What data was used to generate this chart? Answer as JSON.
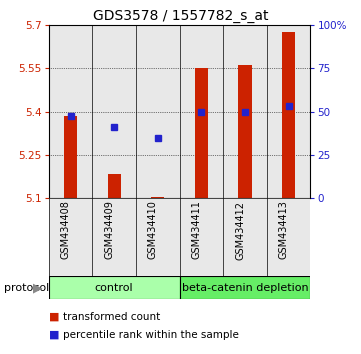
{
  "title": "GDS3578 / 1557782_s_at",
  "samples": [
    "GSM434408",
    "GSM434409",
    "GSM434410",
    "GSM434411",
    "GSM434412",
    "GSM434413"
  ],
  "bar_bottoms": [
    5.1,
    5.1,
    5.1,
    5.1,
    5.1,
    5.1
  ],
  "bar_tops": [
    5.385,
    5.185,
    5.105,
    5.55,
    5.56,
    5.675
  ],
  "blue_y": [
    5.385,
    5.345,
    5.31,
    5.4,
    5.4,
    5.42
  ],
  "ylim": [
    5.1,
    5.7
  ],
  "yticks_left": [
    5.1,
    5.25,
    5.4,
    5.55,
    5.7
  ],
  "yticks_right": [
    0,
    25,
    50,
    75,
    100
  ],
  "bar_color": "#cc2200",
  "blue_color": "#2222cc",
  "group1_label": "control",
  "group2_label": "beta-catenin depletion",
  "group1_color": "#aaffaa",
  "group2_color": "#66ee66",
  "group1_indices": [
    0,
    1,
    2
  ],
  "group2_indices": [
    3,
    4,
    5
  ],
  "legend_bar_label": "transformed count",
  "legend_blue_label": "percentile rank within the sample",
  "protocol_label": "protocol",
  "col_bg_color": "#e8e8e8",
  "title_fontsize": 10,
  "tick_fontsize": 7.5,
  "sample_fontsize": 7,
  "group_fontsize": 8,
  "legend_fontsize": 7.5
}
